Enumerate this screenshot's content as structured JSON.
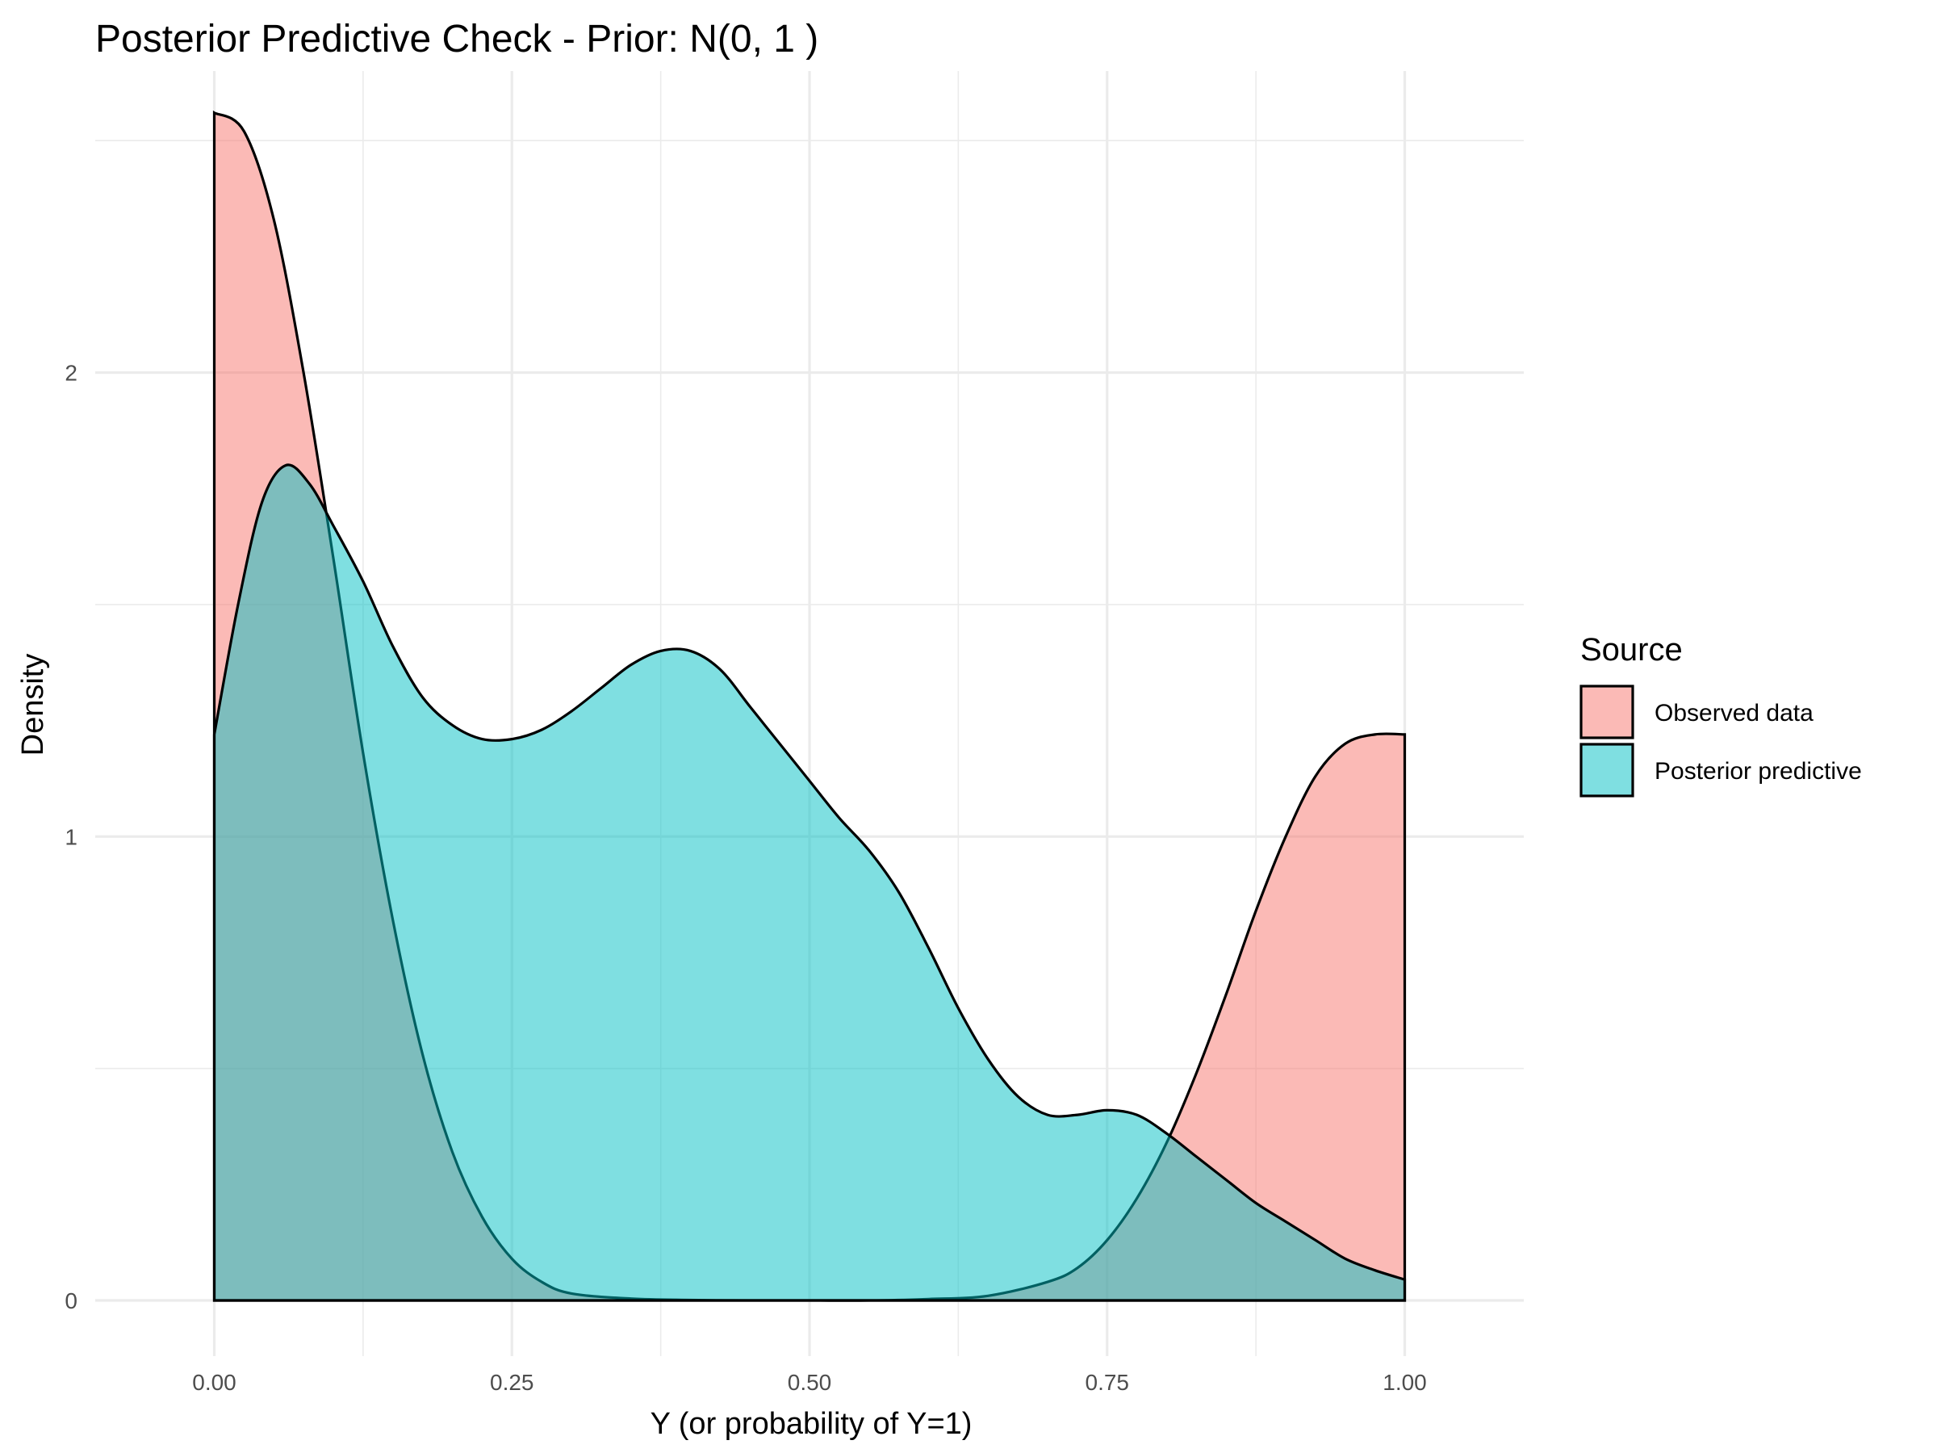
{
  "chart_data": {
    "type": "area",
    "title": "Posterior Predictive Check - Prior: N(0, 1 )",
    "xlabel": "Y (or probability of Y=1)",
    "ylabel": "Density",
    "xlim": [
      -0.1,
      1.1
    ],
    "ylim": [
      -0.12,
      2.65
    ],
    "x_ticks": [
      0.0,
      0.25,
      0.5,
      0.75,
      1.0
    ],
    "x_tick_labels": [
      "0.00",
      "0.25",
      "0.50",
      "0.75",
      "1.00"
    ],
    "x_minor_ticks": [
      0.125,
      0.375,
      0.625,
      0.875
    ],
    "y_ticks": [
      0,
      1,
      2
    ],
    "y_tick_labels": [
      "0",
      "1",
      "2"
    ],
    "y_minor_ticks": [
      0.5,
      1.5,
      2.5
    ],
    "grid": true,
    "legend": {
      "title": "Source",
      "position": "right",
      "entries": [
        "Observed data",
        "Posterior predictive"
      ]
    },
    "series": [
      {
        "name": "Observed data",
        "color": "#F8766D",
        "fill_opacity": 0.5,
        "x": [
          0.0,
          0.025,
          0.05,
          0.075,
          0.1,
          0.125,
          0.15,
          0.175,
          0.2,
          0.225,
          0.25,
          0.275,
          0.3,
          0.35,
          0.4,
          0.45,
          0.5,
          0.55,
          0.6,
          0.65,
          0.7,
          0.725,
          0.75,
          0.775,
          0.8,
          0.825,
          0.85,
          0.875,
          0.9,
          0.925,
          0.95,
          0.975,
          1.0
        ],
        "y": [
          2.56,
          2.52,
          2.33,
          2.0,
          1.6,
          1.18,
          0.82,
          0.53,
          0.32,
          0.18,
          0.09,
          0.04,
          0.015,
          0.004,
          0.001,
          0.0,
          0.0,
          0.0,
          0.003,
          0.01,
          0.04,
          0.07,
          0.13,
          0.22,
          0.34,
          0.49,
          0.66,
          0.84,
          1.0,
          1.13,
          1.2,
          1.22,
          1.22
        ]
      },
      {
        "name": "Posterior predictive",
        "color": "#00BFC4",
        "fill_opacity": 0.5,
        "x": [
          0.0,
          0.02,
          0.04,
          0.06,
          0.08,
          0.1,
          0.125,
          0.15,
          0.175,
          0.2,
          0.225,
          0.25,
          0.275,
          0.3,
          0.325,
          0.35,
          0.375,
          0.4,
          0.425,
          0.45,
          0.475,
          0.5,
          0.525,
          0.55,
          0.575,
          0.6,
          0.625,
          0.65,
          0.675,
          0.7,
          0.725,
          0.75,
          0.775,
          0.8,
          0.825,
          0.85,
          0.875,
          0.9,
          0.925,
          0.95,
          0.975,
          1.0
        ],
        "y": [
          1.22,
          1.5,
          1.72,
          1.8,
          1.76,
          1.67,
          1.55,
          1.41,
          1.3,
          1.24,
          1.21,
          1.21,
          1.23,
          1.27,
          1.32,
          1.37,
          1.4,
          1.4,
          1.36,
          1.28,
          1.2,
          1.12,
          1.04,
          0.97,
          0.88,
          0.76,
          0.63,
          0.52,
          0.44,
          0.4,
          0.4,
          0.41,
          0.4,
          0.36,
          0.31,
          0.26,
          0.21,
          0.17,
          0.13,
          0.09,
          0.065,
          0.045
        ]
      }
    ]
  }
}
